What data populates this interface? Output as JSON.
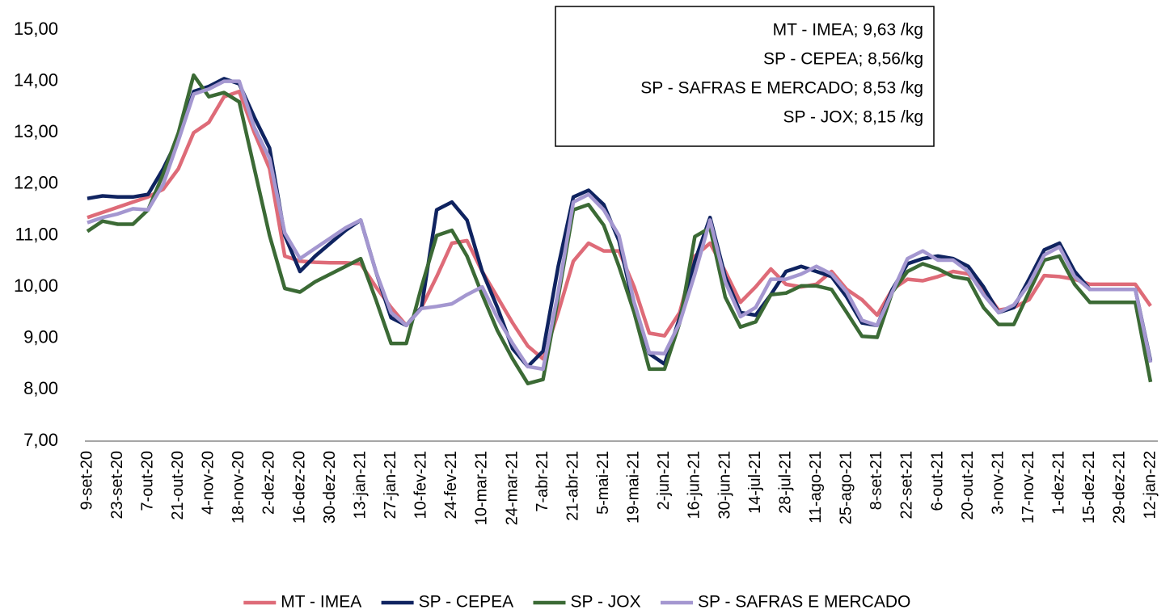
{
  "chart_data": {
    "type": "line",
    "categories": [
      "9-set-20",
      null,
      "23-set-20",
      null,
      "7-out-20",
      null,
      "21-out-20",
      null,
      "4-nov-20",
      null,
      "18-nov-20",
      null,
      "2-dez-20",
      null,
      "16-dez-20",
      null,
      "30-dez-20",
      null,
      "13-jan-21",
      null,
      "27-jan-21",
      null,
      "10-fev-21",
      null,
      "24-fev-21",
      null,
      "10-mar-21",
      null,
      "24-mar-21",
      null,
      "7-abr-21",
      null,
      "21-abr-21",
      null,
      "5-mai-21",
      null,
      "19-mai-21",
      null,
      "2-jun-21",
      null,
      "16-jun-21",
      null,
      "30-jun-21",
      null,
      "14-jul-21",
      null,
      "28-jul-21",
      null,
      "11-ago-21",
      null,
      "25-ago-21",
      null,
      "8-set-21",
      null,
      "22-set-21",
      null,
      "6-out-21",
      null,
      "20-out-21",
      null,
      "3-nov-21",
      null,
      "17-nov-21",
      null,
      "1-dez-21",
      null,
      "15-dez-21",
      null,
      "29-dez-21",
      null,
      "12-jan-22"
    ],
    "series": [
      {
        "name": "MT - IMEA",
        "color": "#de6b78",
        "values": [
          11.35,
          11.45,
          11.55,
          11.65,
          11.75,
          11.9,
          12.3,
          13.0,
          13.2,
          13.7,
          13.8,
          13.0,
          12.3,
          10.6,
          10.5,
          10.48,
          10.47,
          10.47,
          10.45,
          10.0,
          9.6,
          9.25,
          9.6,
          10.2,
          10.85,
          10.9,
          10.3,
          9.8,
          9.3,
          8.85,
          8.6,
          9.5,
          10.5,
          10.85,
          10.7,
          10.7,
          10.0,
          9.1,
          9.05,
          9.5,
          10.6,
          10.85,
          10.3,
          9.7,
          10.0,
          10.35,
          10.05,
          10.0,
          10.05,
          10.3,
          9.95,
          9.75,
          9.45,
          9.95,
          10.15,
          10.12,
          10.2,
          10.3,
          10.25,
          9.95,
          9.55,
          9.6,
          9.75,
          10.22,
          10.2,
          10.15,
          10.05,
          10.05,
          10.05,
          10.05,
          9.63
        ]
      },
      {
        "name": "SP - CEPEA",
        "color": "#0f2360",
        "values": [
          11.72,
          11.77,
          11.75,
          11.75,
          11.8,
          12.3,
          12.9,
          13.8,
          13.9,
          14.05,
          13.95,
          13.3,
          12.7,
          11.0,
          10.3,
          10.6,
          10.85,
          11.1,
          11.3,
          10.3,
          9.4,
          9.25,
          9.6,
          11.5,
          11.65,
          11.3,
          10.3,
          9.6,
          8.8,
          8.45,
          8.75,
          10.4,
          11.75,
          11.88,
          11.6,
          10.9,
          9.6,
          8.7,
          8.5,
          9.4,
          10.5,
          11.35,
          10.2,
          9.5,
          9.45,
          9.85,
          10.3,
          10.4,
          10.3,
          10.2,
          9.8,
          9.3,
          9.25,
          9.95,
          10.45,
          10.55,
          10.6,
          10.55,
          10.4,
          10.0,
          9.5,
          9.6,
          10.15,
          10.72,
          10.85,
          10.3,
          9.95,
          9.95,
          9.95,
          9.95,
          8.56
        ]
      },
      {
        "name": "SP - JOX",
        "color": "#3b6a35",
        "values": [
          11.08,
          11.28,
          11.22,
          11.22,
          11.5,
          12.2,
          13.0,
          14.12,
          13.7,
          13.78,
          13.6,
          12.3,
          11.0,
          9.97,
          9.9,
          10.1,
          10.25,
          10.4,
          10.55,
          9.75,
          8.9,
          8.9,
          10.0,
          11.0,
          11.1,
          10.6,
          9.85,
          9.15,
          8.6,
          8.12,
          8.2,
          9.8,
          11.5,
          11.6,
          11.2,
          10.4,
          9.5,
          8.4,
          8.4,
          9.3,
          10.98,
          11.15,
          9.8,
          9.22,
          9.32,
          9.85,
          9.88,
          10.02,
          10.02,
          9.95,
          9.5,
          9.04,
          9.02,
          9.9,
          10.3,
          10.45,
          10.35,
          10.2,
          10.15,
          9.6,
          9.27,
          9.27,
          9.9,
          10.52,
          10.6,
          10.05,
          9.7,
          9.7,
          9.7,
          9.7,
          8.15
        ]
      },
      {
        "name": "SP - SAFRAS E MERCADO",
        "color": "#a497d0",
        "values": [
          11.25,
          11.35,
          11.42,
          11.52,
          11.5,
          12.0,
          12.85,
          13.75,
          13.85,
          14.0,
          14.0,
          13.1,
          12.5,
          11.05,
          10.55,
          10.75,
          10.95,
          11.15,
          11.3,
          10.3,
          9.5,
          9.25,
          9.58,
          9.62,
          9.67,
          9.85,
          10.0,
          9.4,
          8.9,
          8.45,
          8.4,
          9.9,
          11.65,
          11.8,
          11.5,
          11.0,
          9.7,
          8.72,
          8.7,
          9.3,
          10.25,
          11.3,
          10.1,
          9.42,
          9.6,
          10.15,
          10.15,
          10.25,
          10.4,
          10.25,
          9.9,
          9.35,
          9.25,
          9.9,
          10.55,
          10.7,
          10.52,
          10.52,
          10.3,
          9.85,
          9.5,
          9.65,
          10.05,
          10.62,
          10.78,
          10.2,
          9.95,
          9.95,
          9.95,
          9.95,
          8.53
        ]
      }
    ],
    "ylim": [
      7,
      15
    ],
    "yticks": [
      {
        "value": 7,
        "label": "7,00"
      },
      {
        "value": 8,
        "label": "8,00"
      },
      {
        "value": 9,
        "label": "9,00"
      },
      {
        "value": 10,
        "label": "10,00"
      },
      {
        "value": 11,
        "label": "11,00"
      },
      {
        "value": 12,
        "label": "12,00"
      },
      {
        "value": 13,
        "label": "13,00"
      },
      {
        "value": 14,
        "label": "14,00"
      },
      {
        "value": 15,
        "label": "15,00"
      }
    ],
    "grid": false,
    "legend": "bottom",
    "annotations": [
      "MT - IMEA;  9,63 /kg",
      "SP - CEPEA; 8,56/kg",
      "SP - SAFRAS E MERCADO;  8,53 /kg",
      "SP - JOX;  8,15 /kg"
    ]
  }
}
